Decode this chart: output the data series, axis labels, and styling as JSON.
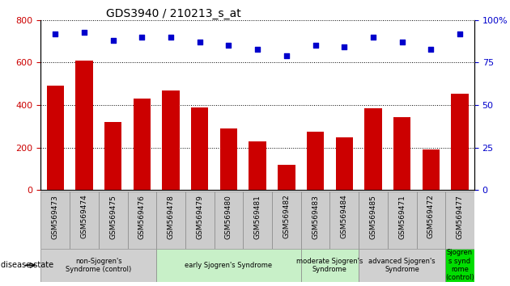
{
  "title": "GDS3940 / 210213_s_at",
  "samples": [
    "GSM569473",
    "GSM569474",
    "GSM569475",
    "GSM569476",
    "GSM569478",
    "GSM569479",
    "GSM569480",
    "GSM569481",
    "GSM569482",
    "GSM569483",
    "GSM569484",
    "GSM569485",
    "GSM569471",
    "GSM569472",
    "GSM569477"
  ],
  "counts": [
    490,
    610,
    320,
    430,
    470,
    390,
    290,
    230,
    120,
    275,
    250,
    385,
    345,
    190,
    455
  ],
  "percentiles": [
    92,
    93,
    88,
    90,
    90,
    87,
    85,
    83,
    79,
    85,
    84,
    90,
    87,
    83,
    92
  ],
  "bar_color": "#cc0000",
  "dot_color": "#0000cc",
  "ylim_left": [
    0,
    800
  ],
  "ylim_right": [
    0,
    100
  ],
  "yticks_left": [
    0,
    200,
    400,
    600,
    800
  ],
  "yticks_right": [
    0,
    25,
    50,
    75,
    100
  ],
  "groups": [
    {
      "label": "non-Sjogren's\nSyndrome (control)",
      "start": 0,
      "end": 3,
      "color": "#d0d0d0"
    },
    {
      "label": "early Sjogren's Syndrome",
      "start": 4,
      "end": 8,
      "color": "#c8f0c8"
    },
    {
      "label": "moderate Sjogren's\nSyndrome",
      "start": 9,
      "end": 10,
      "color": "#c8f0c8"
    },
    {
      "label": "advanced Sjogren's\nSyndrome",
      "start": 11,
      "end": 13,
      "color": "#d0d0d0"
    },
    {
      "label": "Sjogren\ns synd\nrome\n(control)",
      "start": 14,
      "end": 14,
      "color": "#00dd00"
    }
  ],
  "tick_bg_color": "#cccccc",
  "background_color": "#ffffff",
  "legend_count_color": "#cc0000",
  "legend_pct_color": "#0000cc",
  "percentile_scale": 8
}
